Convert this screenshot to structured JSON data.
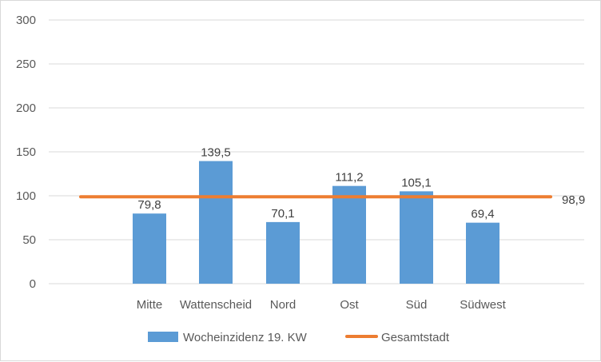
{
  "chart_data": {
    "type": "bar",
    "categories": [
      "Mitte",
      "Wattenscheid",
      "Nord",
      "Ost",
      "Süd",
      "Südwest"
    ],
    "series": [
      {
        "name": "Wocheinzidenz 19. KW",
        "type": "bar",
        "values": [
          79.8,
          139.5,
          70.1,
          111.2,
          105.1,
          69.4
        ],
        "labels": [
          "79,8",
          "139,5",
          "70,1",
          "111,2",
          "105,1",
          "69,4"
        ],
        "color": "#5b9bd5"
      },
      {
        "name": "Gesamtstadt",
        "type": "line",
        "value": 98.9,
        "label": "98,9",
        "color": "#ed7d31"
      }
    ],
    "ylim": [
      0,
      300
    ],
    "yticks": [
      0,
      50,
      100,
      150,
      200,
      250,
      300
    ],
    "grid": true,
    "legend": "bottom"
  }
}
